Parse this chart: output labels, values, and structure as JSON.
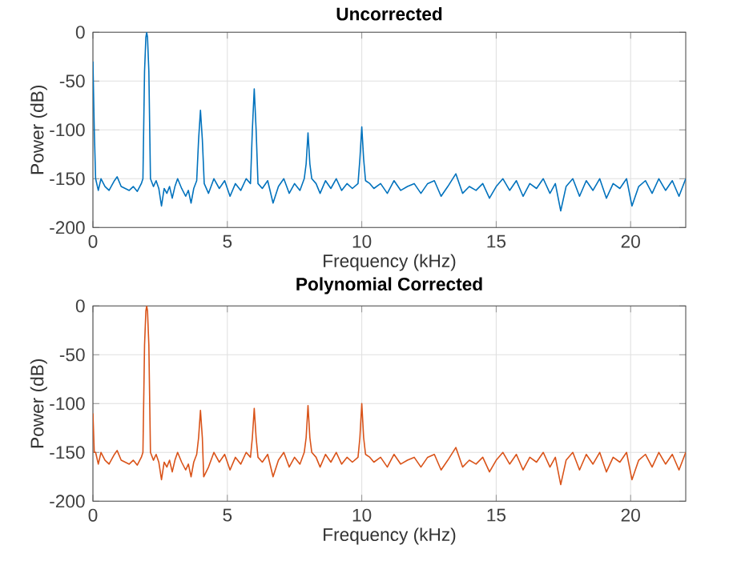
{
  "chart_data": [
    {
      "type": "line",
      "title": "Uncorrected",
      "xlabel": "Frequency (kHz)",
      "ylabel": "Power (dB)",
      "xlim": [
        0,
        22.05
      ],
      "ylim": [
        -200,
        0
      ],
      "xticks": [
        0,
        5,
        10,
        15,
        20
      ],
      "yticks": [
        -200,
        -150,
        -100,
        -50,
        0
      ],
      "grid": true,
      "series": [
        {
          "color": "#0072bd",
          "x": [
            0,
            0.05,
            0.1,
            0.2,
            0.3,
            0.45,
            0.6,
            0.8,
            0.9,
            1.05,
            1.2,
            1.35,
            1.5,
            1.65,
            1.8,
            1.86,
            1.92,
            1.97,
            2.0,
            2.03,
            2.08,
            2.14,
            2.25,
            2.35,
            2.45,
            2.55,
            2.65,
            2.75,
            2.85,
            2.95,
            3.05,
            3.15,
            3.3,
            3.45,
            3.55,
            3.65,
            3.75,
            3.86,
            3.93,
            4.0,
            4.07,
            4.14,
            4.3,
            4.5,
            4.7,
            4.9,
            5.1,
            5.3,
            5.5,
            5.7,
            5.86,
            5.93,
            6.0,
            6.07,
            6.14,
            6.3,
            6.5,
            6.7,
            6.9,
            7.1,
            7.3,
            7.5,
            7.7,
            7.86,
            7.93,
            8.0,
            8.07,
            8.14,
            8.3,
            8.45,
            8.65,
            8.85,
            9.05,
            9.25,
            9.45,
            9.65,
            9.86,
            9.93,
            10.0,
            10.07,
            10.14,
            10.3,
            10.45,
            10.7,
            10.95,
            11.2,
            11.45,
            11.7,
            11.95,
            12.2,
            12.45,
            12.7,
            12.95,
            13.2,
            13.5,
            13.75,
            14.0,
            14.25,
            14.5,
            14.75,
            15.0,
            15.25,
            15.5,
            15.75,
            16.0,
            16.25,
            16.5,
            16.75,
            17.0,
            17.2,
            17.4,
            17.6,
            17.85,
            18.1,
            18.35,
            18.6,
            18.85,
            19.1,
            19.35,
            19.6,
            19.85,
            20.05,
            20.3,
            20.55,
            20.8,
            21.05,
            21.3,
            21.55,
            21.8,
            22.05
          ],
          "values": [
            -30,
            -100,
            -150,
            -162,
            -150,
            -158,
            -162,
            -152,
            -148,
            -158,
            -160,
            -162,
            -158,
            -163,
            -155,
            -150,
            -40,
            -5,
            0,
            -5,
            -40,
            -150,
            -158,
            -152,
            -160,
            -178,
            -160,
            -165,
            -158,
            -170,
            -158,
            -150,
            -160,
            -168,
            -162,
            -175,
            -160,
            -152,
            -110,
            -80,
            -110,
            -155,
            -165,
            -150,
            -160,
            -152,
            -168,
            -155,
            -162,
            -150,
            -155,
            -100,
            -58,
            -100,
            -155,
            -160,
            -152,
            -175,
            -158,
            -150,
            -165,
            -155,
            -162,
            -150,
            -135,
            -103,
            -135,
            -150,
            -155,
            -165,
            -152,
            -160,
            -150,
            -162,
            -155,
            -160,
            -155,
            -130,
            -97,
            -130,
            -152,
            -155,
            -160,
            -155,
            -165,
            -152,
            -162,
            -158,
            -155,
            -165,
            -155,
            -152,
            -168,
            -158,
            -145,
            -165,
            -158,
            -162,
            -155,
            -170,
            -158,
            -150,
            -162,
            -152,
            -168,
            -155,
            -160,
            -150,
            -165,
            -155,
            -183,
            -158,
            -150,
            -168,
            -152,
            -162,
            -150,
            -170,
            -155,
            -160,
            -150,
            -178,
            -158,
            -152,
            -165,
            -150,
            -162,
            -152,
            -168,
            -150
          ]
        }
      ]
    },
    {
      "type": "line",
      "title": "Polynomial Corrected",
      "xlabel": "Frequency (kHz)",
      "ylabel": "Power (dB)",
      "xlim": [
        0,
        22.05
      ],
      "ylim": [
        -200,
        0
      ],
      "xticks": [
        0,
        5,
        10,
        15,
        20
      ],
      "yticks": [
        -200,
        -150,
        -100,
        -50,
        0
      ],
      "grid": true,
      "series": [
        {
          "color": "#d95319",
          "x": [
            0,
            0.05,
            0.1,
            0.2,
            0.3,
            0.45,
            0.6,
            0.8,
            0.9,
            1.05,
            1.2,
            1.35,
            1.5,
            1.65,
            1.8,
            1.86,
            1.92,
            1.97,
            2.0,
            2.03,
            2.08,
            2.14,
            2.25,
            2.35,
            2.45,
            2.55,
            2.65,
            2.75,
            2.85,
            2.95,
            3.05,
            3.15,
            3.3,
            3.45,
            3.55,
            3.65,
            3.75,
            3.86,
            3.93,
            4.0,
            4.07,
            4.12,
            4.3,
            4.5,
            4.7,
            4.9,
            5.1,
            5.3,
            5.5,
            5.7,
            5.86,
            5.93,
            6.0,
            6.07,
            6.14,
            6.3,
            6.5,
            6.7,
            6.9,
            7.1,
            7.3,
            7.5,
            7.7,
            7.86,
            7.93,
            8.0,
            8.07,
            8.14,
            8.3,
            8.45,
            8.65,
            8.85,
            9.05,
            9.25,
            9.45,
            9.65,
            9.86,
            9.93,
            10.0,
            10.07,
            10.14,
            10.3,
            10.45,
            10.7,
            10.95,
            11.2,
            11.45,
            11.7,
            11.95,
            12.2,
            12.45,
            12.7,
            12.95,
            13.2,
            13.5,
            13.75,
            14.0,
            14.25,
            14.5,
            14.75,
            15.0,
            15.25,
            15.5,
            15.75,
            16.0,
            16.25,
            16.5,
            16.75,
            17.0,
            17.2,
            17.4,
            17.6,
            17.85,
            18.1,
            18.35,
            18.6,
            18.85,
            19.1,
            19.35,
            19.6,
            19.85,
            20.05,
            20.3,
            20.55,
            20.8,
            21.05,
            21.3,
            21.55,
            21.8,
            22.05
          ],
          "values": [
            -110,
            -150,
            -150,
            -162,
            -150,
            -158,
            -162,
            -152,
            -148,
            -158,
            -160,
            -162,
            -158,
            -163,
            -155,
            -150,
            -40,
            -5,
            0,
            -5,
            -40,
            -150,
            -158,
            -152,
            -160,
            -178,
            -160,
            -165,
            -158,
            -170,
            -158,
            -150,
            -160,
            -168,
            -162,
            -175,
            -160,
            -152,
            -135,
            -107,
            -135,
            -175,
            -165,
            -150,
            -160,
            -152,
            -168,
            -155,
            -162,
            -150,
            -155,
            -135,
            -105,
            -135,
            -155,
            -160,
            -152,
            -175,
            -158,
            -150,
            -165,
            -155,
            -162,
            -150,
            -135,
            -102,
            -135,
            -150,
            -155,
            -165,
            -152,
            -160,
            -150,
            -162,
            -155,
            -160,
            -155,
            -135,
            -100,
            -135,
            -152,
            -155,
            -160,
            -155,
            -165,
            -152,
            -162,
            -158,
            -155,
            -165,
            -155,
            -152,
            -168,
            -158,
            -145,
            -165,
            -158,
            -162,
            -155,
            -170,
            -158,
            -150,
            -162,
            -152,
            -168,
            -155,
            -160,
            -150,
            -165,
            -155,
            -183,
            -158,
            -150,
            -168,
            -152,
            -162,
            -150,
            -170,
            -155,
            -160,
            -150,
            -178,
            -158,
            -152,
            -165,
            -150,
            -162,
            -152,
            -168,
            -150
          ]
        }
      ]
    }
  ]
}
